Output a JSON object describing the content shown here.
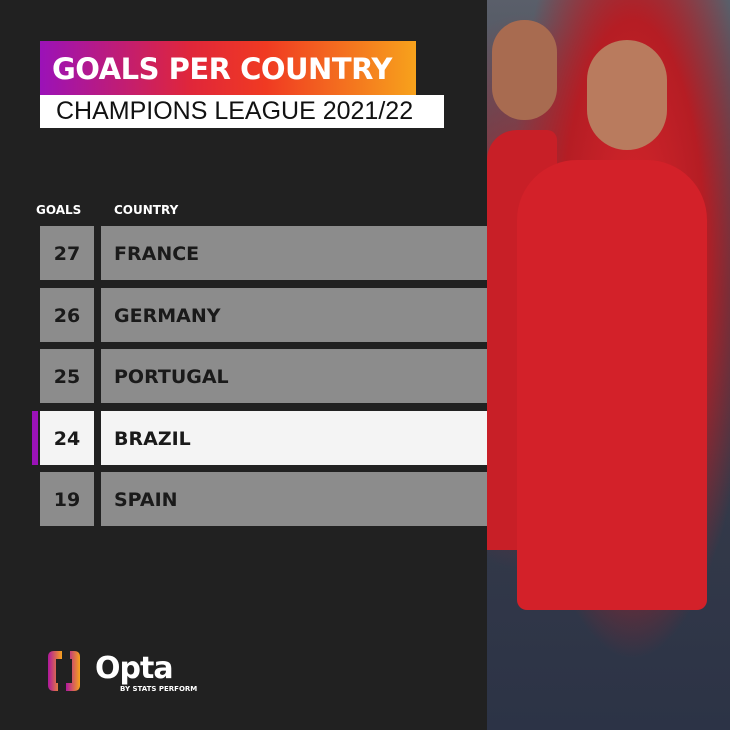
{
  "title": "GOALS PER COUNTRY",
  "subtitle": "CHAMPIONS LEAGUE 2021/22",
  "chart_data": {
    "type": "table",
    "columns": [
      "GOALS",
      "COUNTRY"
    ],
    "rows": [
      {
        "goals": "27",
        "country": "FRANCE"
      },
      {
        "goals": "26",
        "country": "GERMANY"
      },
      {
        "goals": "25",
        "country": "PORTUGAL"
      },
      {
        "goals": "24",
        "country": "BRAZIL",
        "highlighted": true
      },
      {
        "goals": "19",
        "country": "SPAIN"
      }
    ],
    "highlight_color": "#9b12b8"
  },
  "brand": {
    "name": "Opta",
    "tagline": "BY STATS PERFORM"
  }
}
